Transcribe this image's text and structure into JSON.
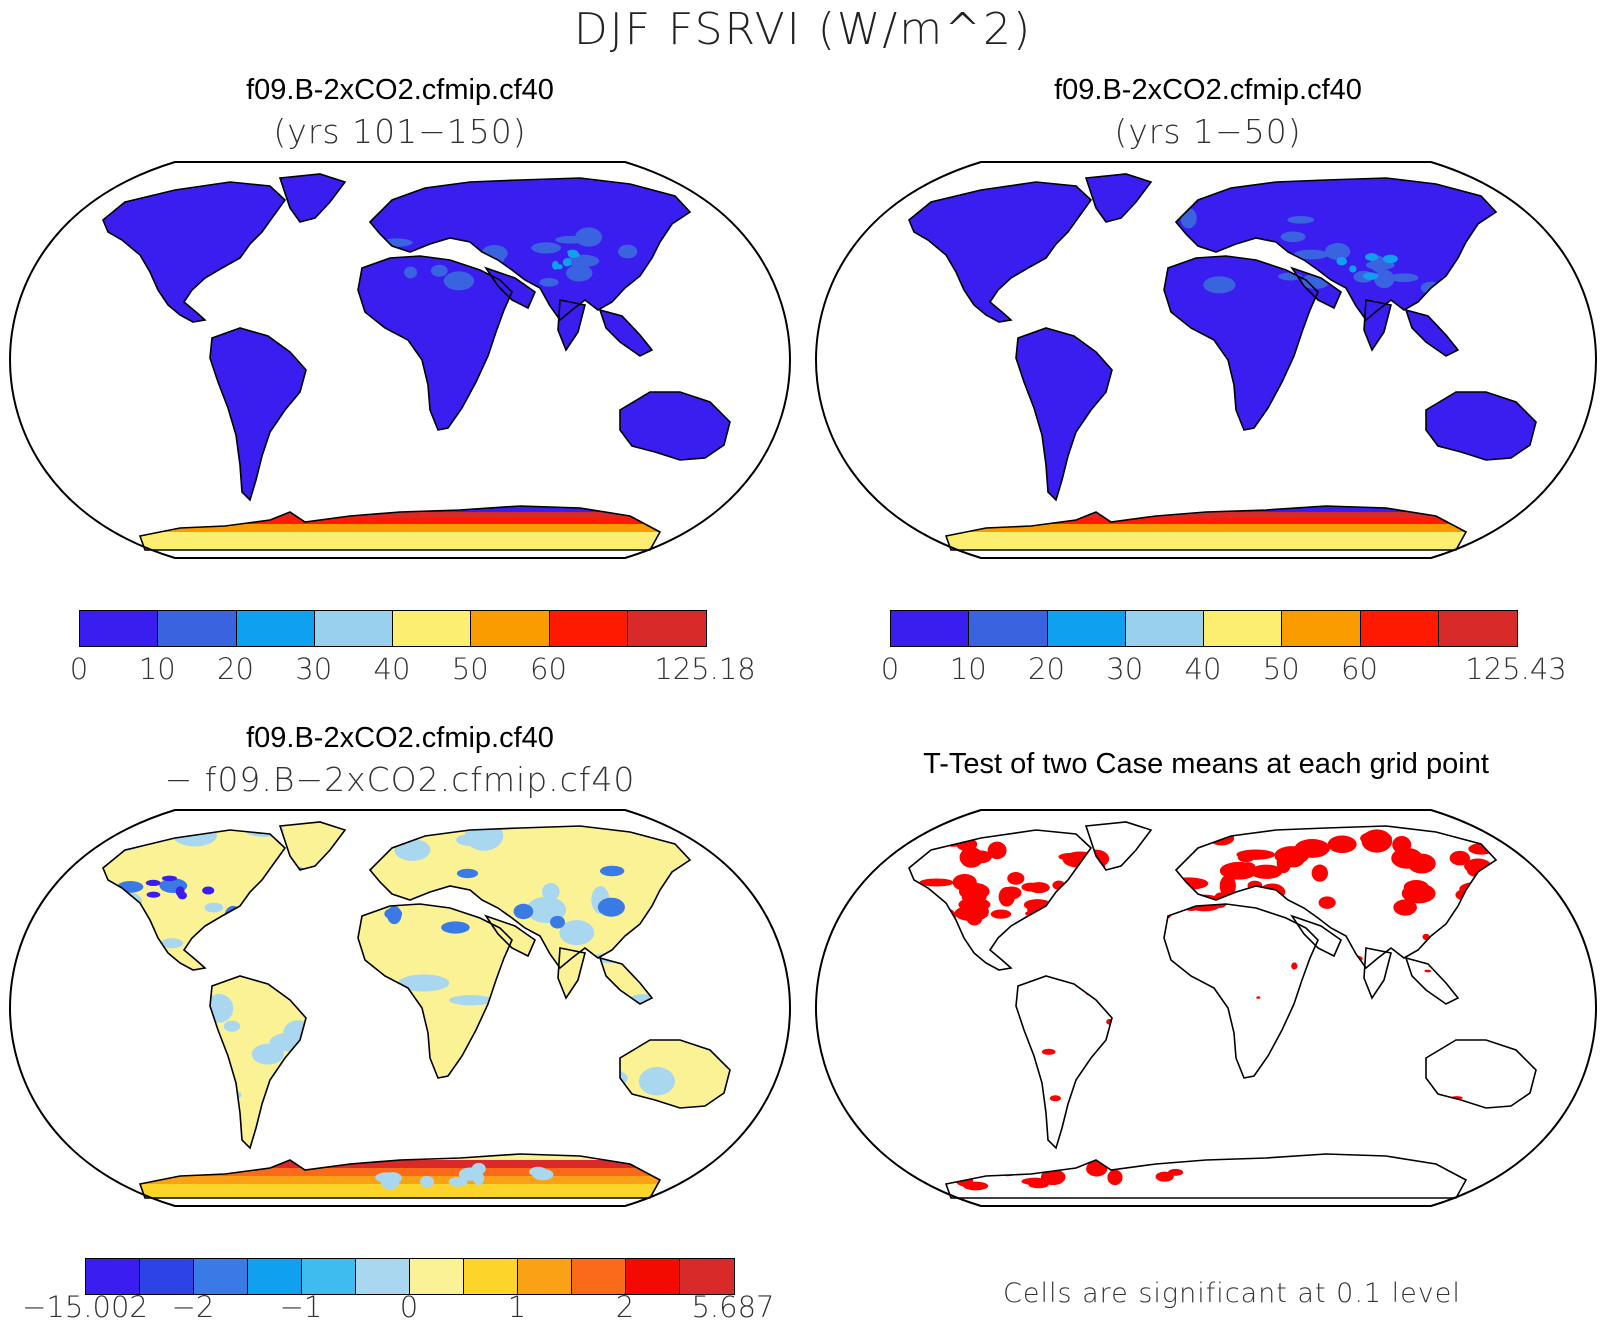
{
  "figure": {
    "title": "DJF FSRVI (W/m^2)"
  },
  "panels": [
    {
      "id": "p1",
      "title": "f09.B-2xCO2.cfmip.cf40",
      "subtitle": "(yrs 101−150)",
      "colorbar": {
        "labels": [
          "0",
          "10",
          "20",
          "30",
          "40",
          "50",
          "60",
          "125.18"
        ],
        "colors": [
          "#3a1ef0",
          "#3a63e0",
          "#0fa1f0",
          "#98d0ee",
          "#fbee70",
          "#fa9c00",
          "#fd1a00",
          "#d92a2a"
        ]
      }
    },
    {
      "id": "p2",
      "title": "f09.B-2xCO2.cfmip.cf40",
      "subtitle": "(yrs 1−50)",
      "colorbar": {
        "labels": [
          "0",
          "10",
          "20",
          "30",
          "40",
          "50",
          "60",
          "125.43"
        ],
        "colors": [
          "#3a1ef0",
          "#3a63e0",
          "#0fa1f0",
          "#98d0ee",
          "#fbee70",
          "#fa9c00",
          "#fd1a00",
          "#d92a2a"
        ]
      }
    },
    {
      "id": "p3",
      "title": "f09.B-2xCO2.cfmip.cf40",
      "subtitle": "− f09.B−2xCO2.cfmip.cf40",
      "colorbar": {
        "labels": [
          "−15.002",
          "−2",
          "−1",
          "0",
          "1",
          "2",
          "5.687"
        ],
        "colors": [
          "#3a1ef0",
          "#2e43e6",
          "#3a7ae6",
          "#0fa1f0",
          "#3fbcef",
          "#a9d7ef",
          "#fbf295",
          "#fdd42a",
          "#fba116",
          "#fa6a1a",
          "#f30a00",
          "#d92a2a"
        ]
      }
    },
    {
      "id": "p4",
      "title": "T-Test of two Case means at each grid point",
      "note": "Cells are significant at 0.1 level",
      "significance_color": "#ff0000"
    }
  ],
  "colors": {
    "land_low": "#3a1ef0",
    "ocean": "#ffffff",
    "coastline": "#000000",
    "diff_negative": "#a9d7ef",
    "diff_positive": "#fbf295",
    "significant": "#ff0000"
  },
  "projection": "Robinson"
}
